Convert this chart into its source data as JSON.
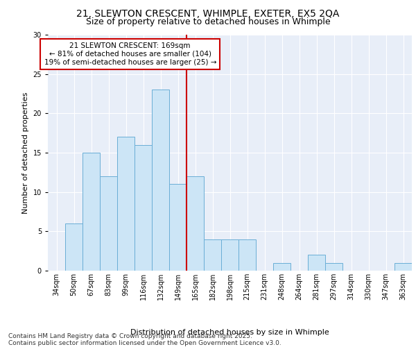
{
  "title1": "21, SLEWTON CRESCENT, WHIMPLE, EXETER, EX5 2QA",
  "title2": "Size of property relative to detached houses in Whimple",
  "xlabel": "Distribution of detached houses by size in Whimple",
  "ylabel": "Number of detached properties",
  "bar_labels": [
    "34sqm",
    "50sqm",
    "67sqm",
    "83sqm",
    "99sqm",
    "116sqm",
    "132sqm",
    "149sqm",
    "165sqm",
    "182sqm",
    "198sqm",
    "215sqm",
    "231sqm",
    "248sqm",
    "264sqm",
    "281sqm",
    "297sqm",
    "314sqm",
    "330sqm",
    "347sqm",
    "363sqm"
  ],
  "bar_values": [
    0,
    6,
    15,
    12,
    17,
    16,
    23,
    11,
    12,
    4,
    4,
    4,
    0,
    1,
    0,
    2,
    1,
    0,
    0,
    0,
    1
  ],
  "bar_color": "#cce5f6",
  "bar_edgecolor": "#6aaed6",
  "vline_color": "#cc0000",
  "annotation_box_color": "#cc0000",
  "ylim": [
    0,
    30
  ],
  "yticks": [
    0,
    5,
    10,
    15,
    20,
    25,
    30
  ],
  "background_color": "#e8eef8",
  "grid_color": "#ffffff",
  "footer": "Contains HM Land Registry data © Crown copyright and database right 2025.\nContains public sector information licensed under the Open Government Licence v3.0.",
  "title_fontsize": 10,
  "subtitle_fontsize": 9,
  "axis_label_fontsize": 8,
  "tick_fontsize": 7,
  "annotation_fontsize": 7.5,
  "footer_fontsize": 6.5
}
